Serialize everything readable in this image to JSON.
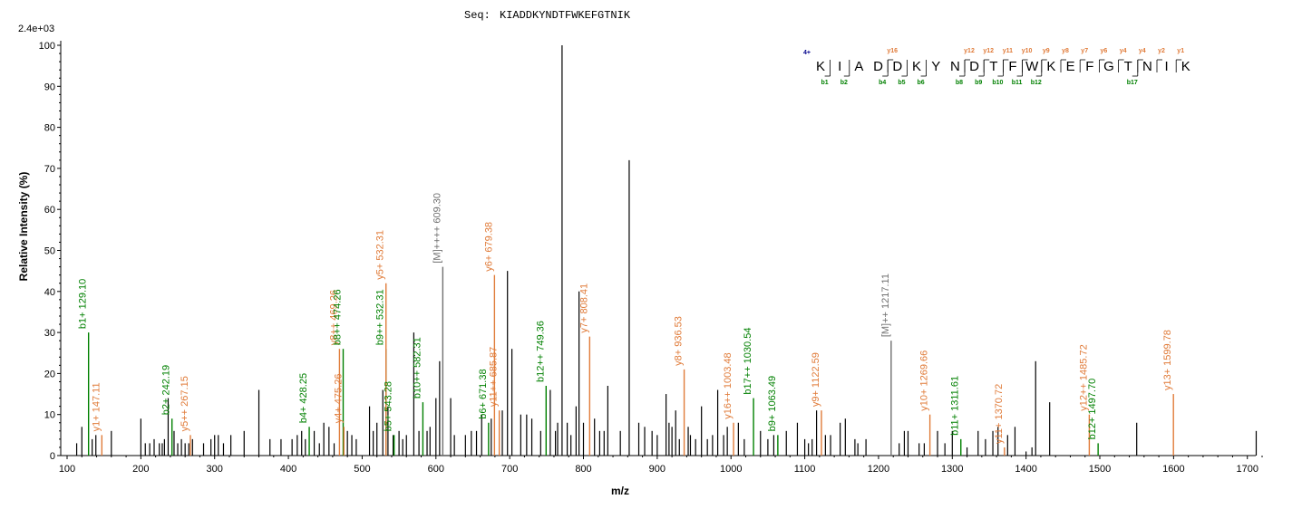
{
  "seq_label": "Seq:",
  "seq_value": "KIADDKYNDTFWKEFGTNIK",
  "max_intensity": "2.4e+03",
  "colors": {
    "b": "#008000",
    "y": "#e07b39",
    "m": "#707070",
    "unlabeled": "#000000",
    "seq": "#00008b"
  },
  "chart_data": {
    "type": "bar",
    "xlabel": "m/z",
    "ylabel": "Relative   Intensity (%)",
    "xlim": [
      100,
      1720
    ],
    "ylim": [
      0,
      100
    ],
    "xticks": [
      100,
      200,
      300,
      400,
      500,
      600,
      700,
      800,
      900,
      1000,
      1100,
      1200,
      1300,
      1400,
      1500,
      1600,
      1700
    ],
    "yticks": [
      0,
      10,
      20,
      30,
      40,
      50,
      60,
      70,
      80,
      90,
      100
    ],
    "labeled_peaks": [
      {
        "mz": 129.1,
        "y": 30,
        "type": "b",
        "label": "b1+ 129.10"
      },
      {
        "mz": 147.11,
        "y": 5,
        "type": "y",
        "label": "y1+ 147.11"
      },
      {
        "mz": 242.19,
        "y": 9,
        "type": "b",
        "label": "b2+ 242.19"
      },
      {
        "mz": 267.15,
        "y": 5,
        "type": "y",
        "label": "y5++ 267.15"
      },
      {
        "mz": 428.25,
        "y": 7,
        "type": "b",
        "label": "b4+ 428.25"
      },
      {
        "mz": 469.26,
        "y": 26,
        "type": "y",
        "label": "y8++ 469.26"
      },
      {
        "mz": 474.26,
        "y": 26,
        "type": "b",
        "label": "b8++ 474.26"
      },
      {
        "mz": 475.26,
        "y": 7,
        "type": "y",
        "label": "y4+ 475.26"
      },
      {
        "mz": 532.31,
        "y": 26,
        "type": "b",
        "label": "b9++ 532.31"
      },
      {
        "mz": 532.31,
        "y": 42,
        "type": "y",
        "label": "y5+ 532.31"
      },
      {
        "mz": 543.28,
        "y": 5,
        "type": "b",
        "label": "b5+ 543.28"
      },
      {
        "mz": 582.31,
        "y": 13,
        "type": "b",
        "label": "b10++ 582.31"
      },
      {
        "mz": 609.3,
        "y": 46,
        "type": "m",
        "label": "[M]++++ 609.30"
      },
      {
        "mz": 671.38,
        "y": 8,
        "type": "b",
        "label": "b6+ 671.38"
      },
      {
        "mz": 679.38,
        "y": 44,
        "type": "y",
        "label": "y6+ 679.38"
      },
      {
        "mz": 685.87,
        "y": 11,
        "type": "y",
        "label": "y11++ 685.87"
      },
      {
        "mz": 749.36,
        "y": 17,
        "type": "b",
        "label": "b12++ 749.36"
      },
      {
        "mz": 808.41,
        "y": 29,
        "type": "y",
        "label": "y7+ 808.41"
      },
      {
        "mz": 936.53,
        "y": 21,
        "type": "y",
        "label": "y8+ 936.53"
      },
      {
        "mz": 1003.48,
        "y": 8,
        "type": "y",
        "label": "y16++ 1003.48"
      },
      {
        "mz": 1030.54,
        "y": 14,
        "type": "b",
        "label": "b17++ 1030.54"
      },
      {
        "mz": 1063.49,
        "y": 5,
        "type": "b",
        "label": "b9+ 1063.49"
      },
      {
        "mz": 1122.59,
        "y": 11,
        "type": "y",
        "label": "y9+ 1122.59"
      },
      {
        "mz": 1217.11,
        "y": 28,
        "type": "m",
        "label": "[M]++ 1217.11"
      },
      {
        "mz": 1269.66,
        "y": 10,
        "type": "y",
        "label": "y10+ 1269.66"
      },
      {
        "mz": 1311.61,
        "y": 4,
        "type": "b",
        "label": "b11+ 1311.61"
      },
      {
        "mz": 1370.72,
        "y": 2,
        "type": "y",
        "label": "y11+ 1370.72"
      },
      {
        "mz": 1485.72,
        "y": 10,
        "type": "y",
        "label": "y12++ 1485.72"
      },
      {
        "mz": 1497.7,
        "y": 3,
        "type": "b",
        "label": "b12+ 1497.70"
      },
      {
        "mz": 1599.78,
        "y": 15,
        "type": "y",
        "label": "y13+ 1599.78"
      }
    ],
    "unlabeled_peaks": [
      [
        113,
        3
      ],
      [
        120,
        7
      ],
      [
        134,
        4
      ],
      [
        139,
        5
      ],
      [
        160,
        6
      ],
      [
        200,
        9
      ],
      [
        206,
        3
      ],
      [
        212,
        3
      ],
      [
        218,
        4
      ],
      [
        225,
        3
      ],
      [
        229,
        3
      ],
      [
        232,
        4
      ],
      [
        237,
        14
      ],
      [
        245,
        6
      ],
      [
        250,
        3
      ],
      [
        255,
        4
      ],
      [
        260,
        3
      ],
      [
        265,
        3
      ],
      [
        270,
        4
      ],
      [
        285,
        3
      ],
      [
        295,
        4
      ],
      [
        300,
        5
      ],
      [
        305,
        5
      ],
      [
        312,
        3
      ],
      [
        322,
        5
      ],
      [
        340,
        6
      ],
      [
        360,
        16
      ],
      [
        375,
        4
      ],
      [
        390,
        4
      ],
      [
        405,
        4
      ],
      [
        412,
        5
      ],
      [
        418,
        6
      ],
      [
        423,
        4
      ],
      [
        435,
        6
      ],
      [
        442,
        3
      ],
      [
        448,
        8
      ],
      [
        455,
        7
      ],
      [
        462,
        3
      ],
      [
        480,
        6
      ],
      [
        486,
        5
      ],
      [
        492,
        4
      ],
      [
        510,
        12
      ],
      [
        515,
        6
      ],
      [
        520,
        8
      ],
      [
        528,
        16
      ],
      [
        535,
        12
      ],
      [
        542,
        5
      ],
      [
        550,
        6
      ],
      [
        555,
        4
      ],
      [
        560,
        5
      ],
      [
        570,
        30
      ],
      [
        577,
        6
      ],
      [
        588,
        6
      ],
      [
        592,
        7
      ],
      [
        600,
        14
      ],
      [
        605,
        23
      ],
      [
        620,
        14
      ],
      [
        625,
        5
      ],
      [
        640,
        5
      ],
      [
        648,
        6
      ],
      [
        655,
        6
      ],
      [
        662,
        10
      ],
      [
        675,
        9
      ],
      [
        690,
        11
      ],
      [
        697,
        45
      ],
      [
        703,
        26
      ],
      [
        715,
        10
      ],
      [
        723,
        10
      ],
      [
        730,
        9
      ],
      [
        742,
        6
      ],
      [
        755,
        16
      ],
      [
        762,
        6
      ],
      [
        765,
        8
      ],
      [
        771,
        100
      ],
      [
        778,
        8
      ],
      [
        783,
        5
      ],
      [
        790,
        12
      ],
      [
        794,
        40
      ],
      [
        800,
        8
      ],
      [
        815,
        9
      ],
      [
        822,
        6
      ],
      [
        828,
        6
      ],
      [
        833,
        17
      ],
      [
        850,
        6
      ],
      [
        862,
        72
      ],
      [
        875,
        8
      ],
      [
        883,
        7
      ],
      [
        893,
        6
      ],
      [
        900,
        5
      ],
      [
        912,
        15
      ],
      [
        916,
        8
      ],
      [
        920,
        7
      ],
      [
        925,
        11
      ],
      [
        930,
        4
      ],
      [
        942,
        7
      ],
      [
        945,
        5
      ],
      [
        952,
        4
      ],
      [
        960,
        12
      ],
      [
        968,
        4
      ],
      [
        975,
        5
      ],
      [
        982,
        16
      ],
      [
        990,
        5
      ],
      [
        995,
        7
      ],
      [
        1010,
        8
      ],
      [
        1018,
        4
      ],
      [
        1040,
        6
      ],
      [
        1050,
        4
      ],
      [
        1058,
        5
      ],
      [
        1075,
        6
      ],
      [
        1090,
        8
      ],
      [
        1100,
        4
      ],
      [
        1105,
        3
      ],
      [
        1110,
        4
      ],
      [
        1116,
        11
      ],
      [
        1128,
        5
      ],
      [
        1135,
        5
      ],
      [
        1148,
        8
      ],
      [
        1155,
        9
      ],
      [
        1168,
        4
      ],
      [
        1172,
        3
      ],
      [
        1183,
        4
      ],
      [
        1228,
        3
      ],
      [
        1235,
        6
      ],
      [
        1240,
        6
      ],
      [
        1255,
        3
      ],
      [
        1262,
        3
      ],
      [
        1280,
        6
      ],
      [
        1290,
        3
      ],
      [
        1300,
        6
      ],
      [
        1320,
        2
      ],
      [
        1335,
        6
      ],
      [
        1345,
        4
      ],
      [
        1355,
        6
      ],
      [
        1362,
        7
      ],
      [
        1375,
        5
      ],
      [
        1385,
        7
      ],
      [
        1400,
        1
      ],
      [
        1408,
        2
      ],
      [
        1413,
        23
      ],
      [
        1432,
        13
      ],
      [
        1550,
        8
      ],
      [
        1712,
        6
      ]
    ]
  },
  "sequence_panel": {
    "charge": "4+",
    "residues": [
      "K",
      "I",
      "A",
      "D",
      "D",
      "K",
      "Y",
      "N",
      "D",
      "T",
      "F",
      "W",
      "K",
      "E",
      "F",
      "G",
      "T",
      "N",
      "I",
      "K"
    ],
    "b_ions": [
      {
        "after": 1,
        "label": "b1"
      },
      {
        "after": 2,
        "label": "b2"
      },
      {
        "after": 4,
        "label": "b4"
      },
      {
        "after": 5,
        "label": "b5"
      },
      {
        "after": 6,
        "label": "b6"
      },
      {
        "after": 8,
        "label": "b8"
      },
      {
        "after": 9,
        "label": "b9"
      },
      {
        "after": 10,
        "label": "b10"
      },
      {
        "after": 11,
        "label": "b11"
      },
      {
        "after": 12,
        "label": "b12"
      },
      {
        "after": 17,
        "label": "b17"
      }
    ],
    "y_ions": [
      {
        "after": 4,
        "label": "y16"
      },
      {
        "after": 8,
        "label": "y12"
      },
      {
        "after": 9,
        "label": "y12"
      },
      {
        "after": 10,
        "label": "y11"
      },
      {
        "after": 11,
        "label": "y10"
      },
      {
        "after": 12,
        "label": "y9"
      },
      {
        "after": 13,
        "label": "y8"
      },
      {
        "after": 14,
        "label": "y7"
      },
      {
        "after": 15,
        "label": "y6"
      },
      {
        "after": 16,
        "label": "y4"
      },
      {
        "after": 17,
        "label": "y4"
      },
      {
        "after": 18,
        "label": "y2"
      },
      {
        "after": 19,
        "label": "y1"
      }
    ]
  }
}
